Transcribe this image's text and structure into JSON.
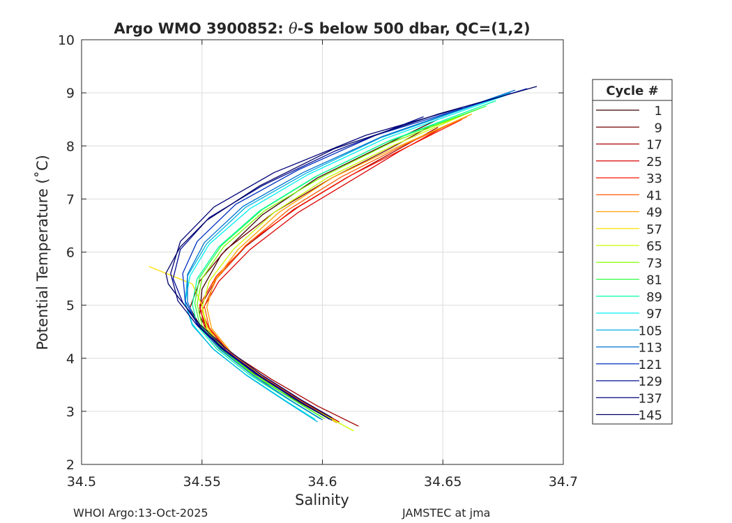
{
  "chart_data": {
    "type": "line",
    "title": "Argo WMO 3900852: θ-S below 500 dbar,  QC=(1,2)",
    "title_parts": {
      "prefix": "Argo WMO 3900852: ",
      "theta": "θ",
      "suffix": "-S below 500 dbar,  QC=(1,2)"
    },
    "xlabel": "Salinity",
    "ylabel": "Potential Temperature (˚C)",
    "xlim": [
      34.5,
      34.7
    ],
    "ylim": [
      2,
      10
    ],
    "xticks": [
      34.5,
      34.55,
      34.6,
      34.65,
      34.7
    ],
    "xtick_labels": [
      "34.5",
      "34.55",
      "34.6",
      "34.65",
      "34.7"
    ],
    "yticks": [
      2,
      3,
      4,
      5,
      6,
      7,
      8,
      9,
      10
    ],
    "ytick_labels": [
      "2",
      "3",
      "4",
      "5",
      "6",
      "7",
      "8",
      "9",
      "10"
    ],
    "grid": true,
    "legend_title": "Cycle #",
    "legend_position": "outside-right",
    "series": [
      {
        "name": "1",
        "color": "#3a0000",
        "points": [
          [
            34.6,
            2.93
          ],
          [
            34.59,
            3.18
          ],
          [
            34.576,
            3.55
          ],
          [
            34.563,
            4.0
          ],
          [
            34.553,
            4.45
          ],
          [
            34.549,
            4.8
          ],
          [
            34.55,
            5.3
          ],
          [
            34.558,
            5.95
          ],
          [
            34.575,
            6.7
          ],
          [
            34.598,
            7.4
          ],
          [
            34.625,
            8.0
          ],
          [
            34.648,
            8.5
          ]
        ]
      },
      {
        "name": "9",
        "color": "#6e0000",
        "points": [
          [
            34.605,
            2.85
          ],
          [
            34.592,
            3.15
          ],
          [
            34.576,
            3.6
          ],
          [
            34.561,
            4.1
          ],
          [
            34.55,
            4.55
          ],
          [
            34.545,
            4.95
          ],
          [
            34.549,
            5.45
          ],
          [
            34.56,
            6.05
          ],
          [
            34.58,
            6.75
          ],
          [
            34.604,
            7.4
          ],
          [
            34.628,
            7.95
          ],
          [
            34.646,
            8.4
          ]
        ]
      },
      {
        "name": "17",
        "color": "#a40000",
        "points": [
          [
            34.615,
            2.72
          ],
          [
            34.598,
            3.1
          ],
          [
            34.579,
            3.6
          ],
          [
            34.562,
            4.1
          ],
          [
            34.552,
            4.55
          ],
          [
            34.549,
            4.95
          ],
          [
            34.556,
            5.5
          ],
          [
            34.568,
            6.1
          ],
          [
            34.588,
            6.8
          ],
          [
            34.61,
            7.4
          ],
          [
            34.63,
            7.9
          ],
          [
            34.648,
            8.35
          ]
        ]
      },
      {
        "name": "25",
        "color": "#d90000",
        "points": [
          [
            34.607,
            2.8
          ],
          [
            34.593,
            3.15
          ],
          [
            34.577,
            3.6
          ],
          [
            34.562,
            4.1
          ],
          [
            34.553,
            4.55
          ],
          [
            34.55,
            4.9
          ],
          [
            34.557,
            5.45
          ],
          [
            34.57,
            6.05
          ],
          [
            34.59,
            6.75
          ],
          [
            34.612,
            7.35
          ],
          [
            34.632,
            7.9
          ],
          [
            34.652,
            8.4
          ]
        ]
      },
      {
        "name": "33",
        "color": "#ff1500",
        "points": [
          [
            34.603,
            2.86
          ],
          [
            34.59,
            3.2
          ],
          [
            34.574,
            3.65
          ],
          [
            34.56,
            4.15
          ],
          [
            34.551,
            4.6
          ],
          [
            34.549,
            5.0
          ],
          [
            34.556,
            5.55
          ],
          [
            34.57,
            6.2
          ],
          [
            34.59,
            6.85
          ],
          [
            34.612,
            7.45
          ],
          [
            34.636,
            8.0
          ],
          [
            34.658,
            8.5
          ]
        ]
      },
      {
        "name": "41",
        "color": "#ff5a00",
        "points": [
          [
            34.604,
            2.84
          ],
          [
            34.591,
            3.18
          ],
          [
            34.575,
            3.64
          ],
          [
            34.561,
            4.14
          ],
          [
            34.553,
            4.58
          ],
          [
            34.551,
            4.98
          ],
          [
            34.556,
            5.5
          ],
          [
            34.568,
            6.12
          ],
          [
            34.586,
            6.8
          ],
          [
            34.608,
            7.42
          ],
          [
            34.634,
            8.02
          ],
          [
            34.66,
            8.55
          ]
        ]
      },
      {
        "name": "49",
        "color": "#ffa000",
        "points": [
          [
            34.606,
            2.78
          ],
          [
            34.592,
            3.16
          ],
          [
            34.576,
            3.62
          ],
          [
            34.562,
            4.12
          ],
          [
            34.554,
            4.56
          ],
          [
            34.552,
            4.96
          ],
          [
            34.555,
            5.45
          ],
          [
            34.565,
            6.05
          ],
          [
            34.582,
            6.75
          ],
          [
            34.604,
            7.4
          ],
          [
            34.632,
            8.0
          ],
          [
            34.662,
            8.6
          ]
        ]
      },
      {
        "name": "57",
        "color": "#ffe000",
        "points": [
          [
            34.602,
            2.88
          ],
          [
            34.589,
            3.22
          ],
          [
            34.573,
            3.68
          ],
          [
            34.559,
            4.16
          ],
          [
            34.552,
            4.6
          ],
          [
            34.55,
            5.0
          ],
          [
            34.546,
            5.4
          ],
          [
            34.528,
            5.73
          ]
        ]
      },
      {
        "name": "65",
        "color": "#c8ff00",
        "points": [
          [
            34.613,
            2.63
          ],
          [
            34.596,
            3.05
          ],
          [
            34.577,
            3.55
          ],
          [
            34.561,
            4.08
          ],
          [
            34.552,
            4.55
          ],
          [
            34.55,
            4.95
          ],
          [
            34.553,
            5.45
          ],
          [
            34.563,
            6.05
          ],
          [
            34.58,
            6.75
          ],
          [
            34.602,
            7.4
          ],
          [
            34.63,
            8.02
          ],
          [
            34.662,
            8.65
          ]
        ]
      },
      {
        "name": "73",
        "color": "#80ff00",
        "points": [
          [
            34.601,
            2.86
          ],
          [
            34.588,
            3.22
          ],
          [
            34.572,
            3.68
          ],
          [
            34.558,
            4.18
          ],
          [
            34.55,
            4.62
          ],
          [
            34.548,
            5.02
          ],
          [
            34.55,
            5.5
          ],
          [
            34.559,
            6.1
          ],
          [
            34.576,
            6.78
          ],
          [
            34.6,
            7.42
          ],
          [
            34.628,
            8.05
          ],
          [
            34.665,
            8.7
          ]
        ]
      },
      {
        "name": "81",
        "color": "#30ff40",
        "points": [
          [
            34.6,
            2.88
          ],
          [
            34.587,
            3.24
          ],
          [
            34.571,
            3.7
          ],
          [
            34.557,
            4.2
          ],
          [
            34.549,
            4.64
          ],
          [
            34.547,
            5.04
          ],
          [
            34.549,
            5.52
          ],
          [
            34.558,
            6.12
          ],
          [
            34.575,
            6.8
          ],
          [
            34.598,
            7.44
          ],
          [
            34.626,
            8.06
          ],
          [
            34.668,
            8.75
          ]
        ]
      },
      {
        "name": "89",
        "color": "#00ffa0",
        "points": [
          [
            34.599,
            2.86
          ],
          [
            34.586,
            3.22
          ],
          [
            34.57,
            3.68
          ],
          [
            34.556,
            4.18
          ],
          [
            34.548,
            4.62
          ],
          [
            34.546,
            5.02
          ],
          [
            34.548,
            5.5
          ],
          [
            34.557,
            6.1
          ],
          [
            34.574,
            6.78
          ],
          [
            34.597,
            7.42
          ],
          [
            34.628,
            8.1
          ],
          [
            34.672,
            8.85
          ]
        ]
      },
      {
        "name": "97",
        "color": "#00f0f0",
        "points": [
          [
            34.597,
            2.85
          ],
          [
            34.584,
            3.22
          ],
          [
            34.568,
            3.7
          ],
          [
            34.554,
            4.2
          ],
          [
            34.546,
            4.65
          ],
          [
            34.543,
            5.05
          ],
          [
            34.545,
            5.55
          ],
          [
            34.553,
            6.15
          ],
          [
            34.57,
            6.82
          ],
          [
            34.594,
            7.46
          ],
          [
            34.626,
            8.14
          ],
          [
            34.676,
            8.95
          ]
        ]
      },
      {
        "name": "105",
        "color": "#00b0e0",
        "points": [
          [
            34.598,
            2.8
          ],
          [
            34.585,
            3.18
          ],
          [
            34.569,
            3.66
          ],
          [
            34.555,
            4.16
          ],
          [
            34.546,
            4.62
          ],
          [
            34.543,
            5.04
          ],
          [
            34.544,
            5.55
          ],
          [
            34.552,
            6.16
          ],
          [
            34.568,
            6.84
          ],
          [
            34.593,
            7.48
          ],
          [
            34.624,
            8.15
          ],
          [
            34.678,
            9.0
          ]
        ]
      },
      {
        "name": "113",
        "color": "#0070d0",
        "points": [
          [
            34.6,
            2.84
          ],
          [
            34.587,
            3.2
          ],
          [
            34.571,
            3.68
          ],
          [
            34.557,
            4.18
          ],
          [
            34.548,
            4.64
          ],
          [
            34.544,
            5.06
          ],
          [
            34.544,
            5.58
          ],
          [
            34.551,
            6.18
          ],
          [
            34.567,
            6.86
          ],
          [
            34.592,
            7.5
          ],
          [
            34.625,
            8.18
          ],
          [
            34.68,
            9.05
          ]
        ]
      },
      {
        "name": "121",
        "color": "#0030c0",
        "points": [
          [
            34.602,
            2.88
          ],
          [
            34.589,
            3.22
          ],
          [
            34.573,
            3.68
          ],
          [
            34.558,
            4.18
          ],
          [
            34.548,
            4.64
          ],
          [
            34.543,
            5.08
          ],
          [
            34.542,
            5.6
          ],
          [
            34.548,
            6.2
          ],
          [
            34.564,
            6.9
          ],
          [
            34.59,
            7.55
          ],
          [
            34.622,
            8.2
          ],
          [
            34.685,
            9.08
          ]
        ]
      },
      {
        "name": "129",
        "color": "#000a90",
        "points": [
          [
            34.604,
            2.83
          ],
          [
            34.591,
            3.18
          ],
          [
            34.575,
            3.64
          ],
          [
            34.56,
            4.14
          ],
          [
            34.549,
            4.6
          ],
          [
            34.542,
            5.05
          ],
          [
            34.538,
            5.5
          ],
          [
            34.541,
            6.05
          ],
          [
            34.553,
            6.65
          ],
          [
            34.575,
            7.25
          ],
          [
            34.605,
            7.9
          ],
          [
            34.642,
            8.55
          ]
        ]
      },
      {
        "name": "137",
        "color": "#000078",
        "points": [
          [
            34.603,
            2.85
          ],
          [
            34.59,
            3.2
          ],
          [
            34.574,
            3.66
          ],
          [
            34.559,
            4.16
          ],
          [
            34.548,
            4.62
          ],
          [
            34.54,
            5.08
          ],
          [
            34.537,
            5.6
          ],
          [
            34.541,
            6.2
          ],
          [
            34.555,
            6.85
          ],
          [
            34.58,
            7.5
          ],
          [
            34.618,
            8.2
          ],
          [
            34.658,
            8.72
          ]
        ]
      },
      {
        "name": "145",
        "color": "#000064",
        "points": [
          [
            34.604,
            2.88
          ],
          [
            34.591,
            3.22
          ],
          [
            34.575,
            3.68
          ],
          [
            34.56,
            4.18
          ],
          [
            34.549,
            4.64
          ],
          [
            34.541,
            5.1
          ],
          [
            34.536,
            5.4
          ],
          [
            34.535,
            5.6
          ],
          [
            34.541,
            6.1
          ],
          [
            34.552,
            6.6
          ],
          [
            34.574,
            7.25
          ],
          [
            34.605,
            7.95
          ],
          [
            34.648,
            8.6
          ],
          [
            34.689,
            9.12
          ]
        ]
      }
    ]
  },
  "footer": {
    "left": "WHOI Argo:13-Oct-2025",
    "right": "JAMSTEC at jma"
  }
}
